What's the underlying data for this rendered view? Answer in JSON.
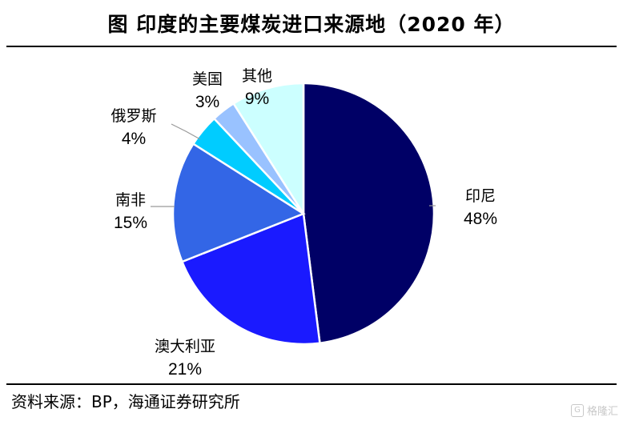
{
  "header": {
    "title": "图  印度的主要煤炭进口来源地（2020 年）"
  },
  "footer": {
    "source": "资料来源：BP，海通证券研究所"
  },
  "watermark": {
    "text": "格隆汇",
    "icon": "glh-logo-icon"
  },
  "chart_data": {
    "type": "pie",
    "title": "图  印度的主要煤炭进口来源地（2020 年）",
    "unit": "%",
    "start_angle_deg": 0,
    "direction": "clockwise",
    "slices": [
      {
        "label": "印尼",
        "value": 48,
        "value_text": "48%",
        "color": "#000066"
      },
      {
        "label": "澳大利亚",
        "value": 21,
        "value_text": "21%",
        "color": "#1a1aff"
      },
      {
        "label": "南非",
        "value": 15,
        "value_text": "15%",
        "color": "#3366e6"
      },
      {
        "label": "俄罗斯",
        "value": 4,
        "value_text": "4%",
        "color": "#00ccff"
      },
      {
        "label": "美国",
        "value": 3,
        "value_text": "3%",
        "color": "#99c2ff"
      },
      {
        "label": "其他",
        "value": 9,
        "value_text": "9%",
        "color": "#ccffff"
      }
    ]
  }
}
